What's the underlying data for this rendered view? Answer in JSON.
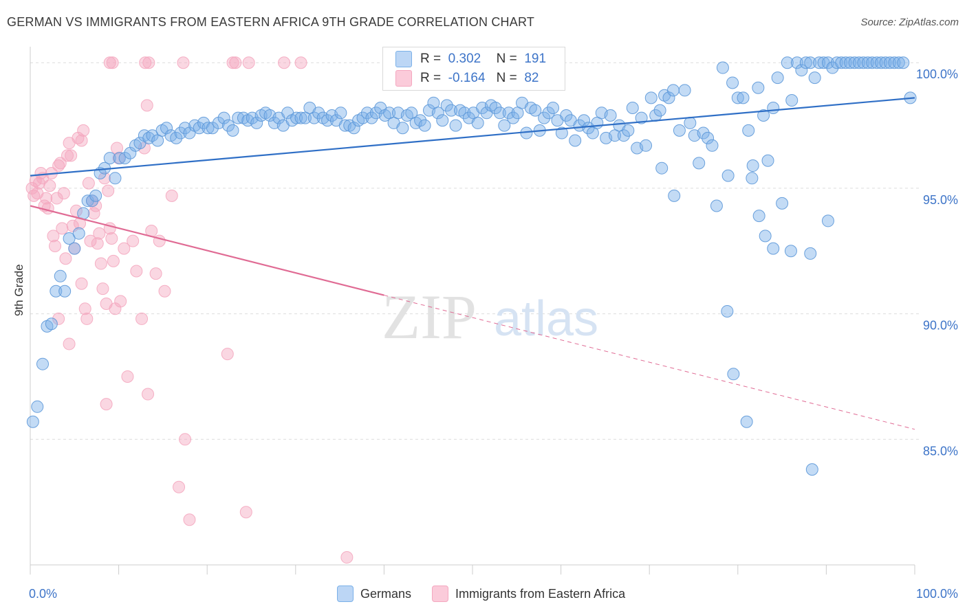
{
  "title": "GERMAN VS IMMIGRANTS FROM EASTERN AFRICA 9TH GRADE CORRELATION CHART",
  "source": "Source: ZipAtlas.com",
  "watermark": {
    "zip": "ZIP",
    "atlas": "atlas"
  },
  "legend": {
    "r_label": "R =",
    "n_label": "N =",
    "germans": {
      "r": "0.302",
      "n": "191"
    },
    "eastafrica": {
      "r": "-0.164",
      "n": "82"
    }
  },
  "bottom_legend": {
    "germans": "Germans",
    "eastafrica": "Immigrants from Eastern Africa"
  },
  "chart_data": {
    "type": "scatter",
    "title": "GERMAN VS IMMIGRANTS FROM EASTERN AFRICA 9TH GRADE CORRELATION CHART",
    "ylabel": "9th Grade",
    "xlabel": "",
    "xlim": [
      0,
      100
    ],
    "ylim": [
      80.0,
      100.8
    ],
    "x_tick_labels": {
      "left": "0.0%",
      "right": "100.0%"
    },
    "y_ticks": [
      {
        "value": 100,
        "label": "100.0%"
      },
      {
        "value": 95,
        "label": "95.0%"
      },
      {
        "value": 90,
        "label": "90.0%"
      },
      {
        "value": 85,
        "label": "85.0%"
      }
    ],
    "colors": {
      "germans": "#7ab0e8",
      "germans_line": "#2f6fc6",
      "eastafrica": "#f4a7bf",
      "eastafrica_line": "#e06b94",
      "tick": "#3d74c8"
    },
    "series": [
      {
        "name": "Germans",
        "color": "#7ab0e8",
        "trend": {
          "x0": 0,
          "y0": 95.5,
          "x1": 100,
          "y1": 98.6
        },
        "points": [
          [
            0.3,
            85.7
          ],
          [
            0.8,
            86.3
          ],
          [
            1.4,
            88.0
          ],
          [
            1.9,
            89.5
          ],
          [
            2.4,
            89.6
          ],
          [
            2.9,
            90.9
          ],
          [
            3.4,
            91.5
          ],
          [
            3.9,
            90.9
          ],
          [
            4.4,
            93.0
          ],
          [
            5.0,
            92.6
          ],
          [
            5.5,
            93.2
          ],
          [
            6.0,
            94.0
          ],
          [
            6.5,
            94.5
          ],
          [
            7.0,
            94.5
          ],
          [
            7.4,
            94.7
          ],
          [
            7.9,
            95.6
          ],
          [
            8.4,
            95.8
          ],
          [
            9.0,
            96.2
          ],
          [
            9.6,
            95.4
          ],
          [
            10.1,
            96.2
          ],
          [
            10.7,
            96.2
          ],
          [
            11.3,
            96.4
          ],
          [
            11.9,
            96.7
          ],
          [
            12.4,
            96.8
          ],
          [
            12.9,
            97.1
          ],
          [
            13.4,
            97.0
          ],
          [
            13.8,
            97.1
          ],
          [
            14.4,
            96.9
          ],
          [
            14.9,
            97.3
          ],
          [
            15.4,
            97.4
          ],
          [
            15.9,
            97.1
          ],
          [
            16.5,
            97.0
          ],
          [
            17.0,
            97.2
          ],
          [
            17.5,
            97.4
          ],
          [
            18.0,
            97.2
          ],
          [
            18.6,
            97.5
          ],
          [
            19.1,
            97.4
          ],
          [
            19.6,
            97.6
          ],
          [
            20.1,
            97.4
          ],
          [
            20.6,
            97.4
          ],
          [
            21.3,
            97.6
          ],
          [
            21.9,
            97.8
          ],
          [
            22.4,
            97.5
          ],
          [
            22.9,
            97.3
          ],
          [
            23.5,
            97.8
          ],
          [
            24.1,
            97.8
          ],
          [
            24.6,
            97.7
          ],
          [
            25.1,
            97.8
          ],
          [
            25.6,
            97.6
          ],
          [
            26.1,
            97.9
          ],
          [
            26.6,
            98.0
          ],
          [
            27.1,
            97.9
          ],
          [
            27.6,
            97.6
          ],
          [
            28.1,
            97.8
          ],
          [
            28.6,
            97.5
          ],
          [
            29.1,
            98.0
          ],
          [
            29.6,
            97.7
          ],
          [
            30.1,
            97.8
          ],
          [
            30.6,
            97.8
          ],
          [
            31.1,
            97.8
          ],
          [
            31.6,
            98.2
          ],
          [
            32.1,
            97.8
          ],
          [
            32.6,
            98.0
          ],
          [
            33.1,
            97.8
          ],
          [
            33.6,
            97.7
          ],
          [
            34.1,
            97.9
          ],
          [
            34.6,
            97.7
          ],
          [
            35.1,
            98.0
          ],
          [
            35.6,
            97.5
          ],
          [
            36.1,
            97.5
          ],
          [
            36.6,
            97.4
          ],
          [
            37.1,
            97.7
          ],
          [
            37.6,
            97.8
          ],
          [
            38.1,
            98.0
          ],
          [
            38.6,
            97.8
          ],
          [
            39.1,
            98.0
          ],
          [
            39.6,
            98.2
          ],
          [
            40.1,
            97.9
          ],
          [
            40.6,
            98.0
          ],
          [
            41.1,
            97.6
          ],
          [
            41.6,
            98.0
          ],
          [
            42.1,
            97.4
          ],
          [
            42.6,
            97.9
          ],
          [
            43.1,
            98.0
          ],
          [
            43.6,
            97.6
          ],
          [
            44.1,
            97.7
          ],
          [
            44.6,
            97.5
          ],
          [
            45.1,
            98.1
          ],
          [
            45.6,
            98.4
          ],
          [
            46.1,
            98.0
          ],
          [
            46.6,
            97.7
          ],
          [
            47.1,
            98.3
          ],
          [
            47.6,
            98.1
          ],
          [
            48.1,
            97.5
          ],
          [
            48.6,
            98.1
          ],
          [
            49.1,
            98.0
          ],
          [
            49.6,
            97.8
          ],
          [
            50.1,
            98.0
          ],
          [
            50.6,
            97.6
          ],
          [
            51.1,
            98.2
          ],
          [
            51.6,
            98.0
          ],
          [
            52.1,
            98.3
          ],
          [
            52.6,
            98.2
          ],
          [
            53.1,
            98.0
          ],
          [
            53.6,
            97.5
          ],
          [
            54.1,
            98.0
          ],
          [
            54.6,
            97.8
          ],
          [
            55.1,
            98.0
          ],
          [
            55.6,
            98.4
          ],
          [
            56.1,
            97.2
          ],
          [
            56.6,
            98.2
          ],
          [
            57.1,
            98.1
          ],
          [
            57.6,
            97.3
          ],
          [
            58.1,
            97.8
          ],
          [
            58.6,
            98.0
          ],
          [
            59.1,
            98.2
          ],
          [
            59.6,
            97.7
          ],
          [
            60.1,
            97.2
          ],
          [
            60.6,
            97.9
          ],
          [
            61.1,
            97.7
          ],
          [
            61.6,
            96.9
          ],
          [
            62.1,
            97.5
          ],
          [
            62.6,
            97.7
          ],
          [
            63.1,
            97.4
          ],
          [
            63.6,
            97.2
          ],
          [
            64.1,
            97.6
          ],
          [
            64.6,
            98.0
          ],
          [
            65.1,
            97.0
          ],
          [
            65.6,
            97.9
          ],
          [
            66.1,
            97.1
          ],
          [
            66.6,
            97.5
          ],
          [
            67.1,
            97.1
          ],
          [
            67.6,
            97.3
          ],
          [
            68.1,
            98.2
          ],
          [
            68.6,
            96.6
          ],
          [
            69.1,
            97.8
          ],
          [
            69.6,
            96.7
          ],
          [
            70.2,
            98.6
          ],
          [
            70.7,
            97.9
          ],
          [
            71.2,
            98.1
          ],
          [
            71.7,
            98.7
          ],
          [
            72.2,
            98.6
          ],
          [
            72.7,
            98.9
          ],
          [
            73.4,
            97.3
          ],
          [
            74.0,
            98.9
          ],
          [
            74.6,
            97.6
          ],
          [
            75.1,
            97.1
          ],
          [
            75.6,
            96.0
          ],
          [
            76.1,
            97.2
          ],
          [
            76.6,
            97.0
          ],
          [
            77.1,
            96.7
          ],
          [
            77.6,
            94.3
          ],
          [
            78.3,
            99.8
          ],
          [
            78.9,
            95.5
          ],
          [
            79.4,
            99.2
          ],
          [
            80.0,
            98.6
          ],
          [
            80.6,
            98.6
          ],
          [
            81.2,
            97.3
          ],
          [
            81.7,
            95.9
          ],
          [
            82.3,
            99.0
          ],
          [
            82.9,
            97.9
          ],
          [
            83.4,
            96.1
          ],
          [
            84.0,
            98.2
          ],
          [
            84.5,
            99.4
          ],
          [
            85.0,
            94.4
          ],
          [
            85.6,
            100.0
          ],
          [
            86.1,
            98.5
          ],
          [
            86.7,
            100.0
          ],
          [
            87.2,
            99.7
          ],
          [
            87.7,
            100.0
          ],
          [
            88.2,
            100.0
          ],
          [
            88.7,
            99.4
          ],
          [
            89.2,
            100.0
          ],
          [
            89.7,
            100.0
          ],
          [
            90.2,
            100.0
          ],
          [
            90.7,
            99.8
          ],
          [
            91.2,
            100.0
          ],
          [
            91.7,
            100.0
          ],
          [
            92.2,
            100.0
          ],
          [
            92.7,
            100.0
          ],
          [
            93.2,
            100.0
          ],
          [
            93.7,
            100.0
          ],
          [
            94.2,
            100.0
          ],
          [
            94.7,
            100.0
          ],
          [
            95.2,
            100.0
          ],
          [
            95.7,
            100.0
          ],
          [
            96.2,
            100.0
          ],
          [
            96.7,
            100.0
          ],
          [
            97.2,
            100.0
          ],
          [
            97.7,
            100.0
          ],
          [
            98.2,
            100.0
          ],
          [
            98.7,
            100.0
          ],
          [
            99.5,
            98.6
          ],
          [
            81.6,
            95.4
          ],
          [
            82.4,
            93.9
          ],
          [
            83.1,
            93.1
          ],
          [
            84.0,
            92.6
          ],
          [
            86.0,
            92.5
          ],
          [
            88.2,
            92.4
          ],
          [
            90.2,
            93.7
          ],
          [
            78.8,
            90.1
          ],
          [
            79.5,
            87.6
          ],
          [
            81.0,
            85.7
          ],
          [
            88.4,
            83.8
          ],
          [
            72.8,
            94.7
          ],
          [
            71.4,
            95.8
          ]
        ]
      },
      {
        "name": "Immigrants from Eastern Africa",
        "color": "#f4a7bf",
        "trend": {
          "x0": 0,
          "y0": 94.3,
          "x1": 100,
          "y1": 85.4,
          "solid_until": 40
        },
        "points": [
          [
            0.2,
            95.0
          ],
          [
            0.4,
            94.7
          ],
          [
            0.6,
            95.3
          ],
          [
            0.8,
            94.8
          ],
          [
            1.0,
            95.2
          ],
          [
            1.2,
            95.6
          ],
          [
            1.4,
            95.4
          ],
          [
            1.6,
            94.3
          ],
          [
            1.8,
            94.6
          ],
          [
            2.0,
            94.2
          ],
          [
            2.2,
            95.1
          ],
          [
            2.4,
            95.6
          ],
          [
            2.6,
            93.1
          ],
          [
            2.8,
            92.7
          ],
          [
            3.0,
            94.6
          ],
          [
            3.2,
            95.9
          ],
          [
            3.4,
            96.0
          ],
          [
            3.6,
            93.4
          ],
          [
            3.8,
            94.8
          ],
          [
            4.0,
            92.2
          ],
          [
            4.2,
            96.3
          ],
          [
            4.4,
            96.8
          ],
          [
            4.6,
            96.3
          ],
          [
            4.8,
            93.5
          ],
          [
            5.0,
            92.6
          ],
          [
            5.2,
            94.1
          ],
          [
            5.4,
            97.0
          ],
          [
            5.6,
            93.6
          ],
          [
            5.8,
            91.2
          ],
          [
            6.0,
            97.3
          ],
          [
            6.2,
            90.2
          ],
          [
            6.4,
            89.8
          ],
          [
            6.6,
            95.2
          ],
          [
            6.8,
            92.9
          ],
          [
            7.0,
            94.5
          ],
          [
            7.2,
            94.0
          ],
          [
            7.4,
            94.3
          ],
          [
            7.6,
            92.8
          ],
          [
            7.8,
            93.2
          ],
          [
            8.0,
            92.0
          ],
          [
            8.2,
            91.0
          ],
          [
            8.4,
            95.4
          ],
          [
            8.6,
            90.4
          ],
          [
            8.8,
            94.9
          ],
          [
            9.0,
            93.4
          ],
          [
            9.2,
            93.0
          ],
          [
            9.4,
            92.1
          ],
          [
            9.6,
            90.2
          ],
          [
            9.8,
            96.6
          ],
          [
            10.0,
            96.2
          ],
          [
            10.2,
            90.5
          ],
          [
            10.6,
            92.6
          ],
          [
            11.0,
            87.5
          ],
          [
            11.6,
            92.9
          ],
          [
            12.0,
            91.7
          ],
          [
            12.6,
            89.8
          ],
          [
            12.9,
            96.6
          ],
          [
            13.3,
            86.8
          ],
          [
            13.7,
            93.3
          ],
          [
            14.2,
            91.6
          ],
          [
            14.6,
            92.9
          ],
          [
            15.2,
            90.9
          ],
          [
            16.0,
            94.7
          ],
          [
            16.8,
            83.1
          ],
          [
            17.5,
            85.0
          ],
          [
            18.0,
            81.8
          ],
          [
            13.0,
            100.0
          ],
          [
            13.4,
            100.0
          ],
          [
            17.3,
            100.0
          ],
          [
            22.9,
            100.0
          ],
          [
            23.2,
            100.0
          ],
          [
            24.7,
            100.0
          ],
          [
            28.7,
            100.0
          ],
          [
            30.6,
            100.0
          ],
          [
            9.0,
            100.0
          ],
          [
            9.3,
            100.0
          ],
          [
            13.2,
            98.3
          ],
          [
            5.8,
            96.9
          ],
          [
            4.4,
            88.8
          ],
          [
            3.2,
            89.8
          ],
          [
            8.6,
            86.4
          ],
          [
            22.3,
            88.4
          ],
          [
            24.4,
            82.1
          ],
          [
            35.8,
            80.3
          ]
        ]
      }
    ]
  }
}
